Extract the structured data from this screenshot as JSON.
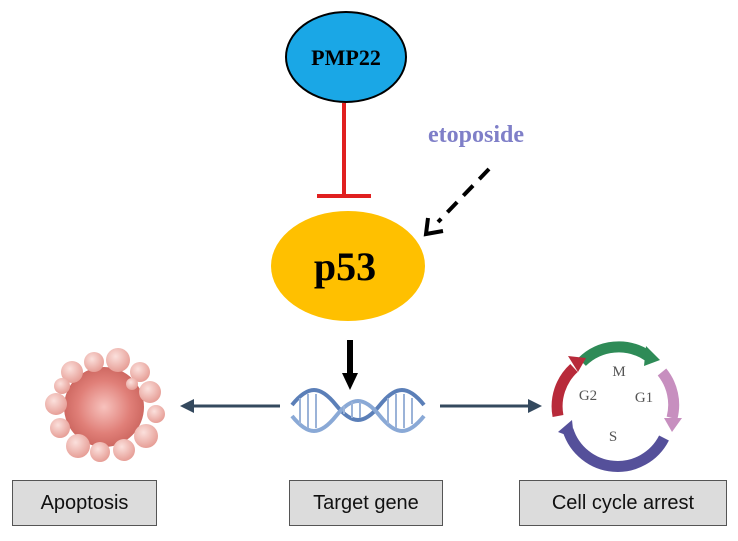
{
  "nodes": {
    "pmp22": {
      "label": "PMP22",
      "color": "#1aa7e6"
    },
    "p53": {
      "label": "p53",
      "color": "#ffc000"
    },
    "etoposide": {
      "label": "etoposide",
      "color": "#7f7fc8"
    }
  },
  "cell_cycle": {
    "phases": [
      "M",
      "G1",
      "S",
      "G2"
    ]
  },
  "outputs": {
    "apoptosis": "Apoptosis",
    "target_gene": "Target gene",
    "cell_cycle_arrest": "Cell cycle arrest"
  },
  "colors": {
    "inhibition": "#e02020",
    "arrow": "#34495e",
    "box_fill": "#dcdcdc"
  },
  "edges": [
    {
      "from": "PMP22",
      "to": "p53",
      "type": "inhibition"
    },
    {
      "from": "etoposide",
      "to": "p53",
      "type": "activation-dashed"
    },
    {
      "from": "p53",
      "to": "Target gene",
      "type": "activation"
    },
    {
      "from": "Target gene",
      "to": "Apoptosis",
      "type": "activation"
    },
    {
      "from": "Target gene",
      "to": "Cell cycle arrest",
      "type": "activation"
    }
  ]
}
